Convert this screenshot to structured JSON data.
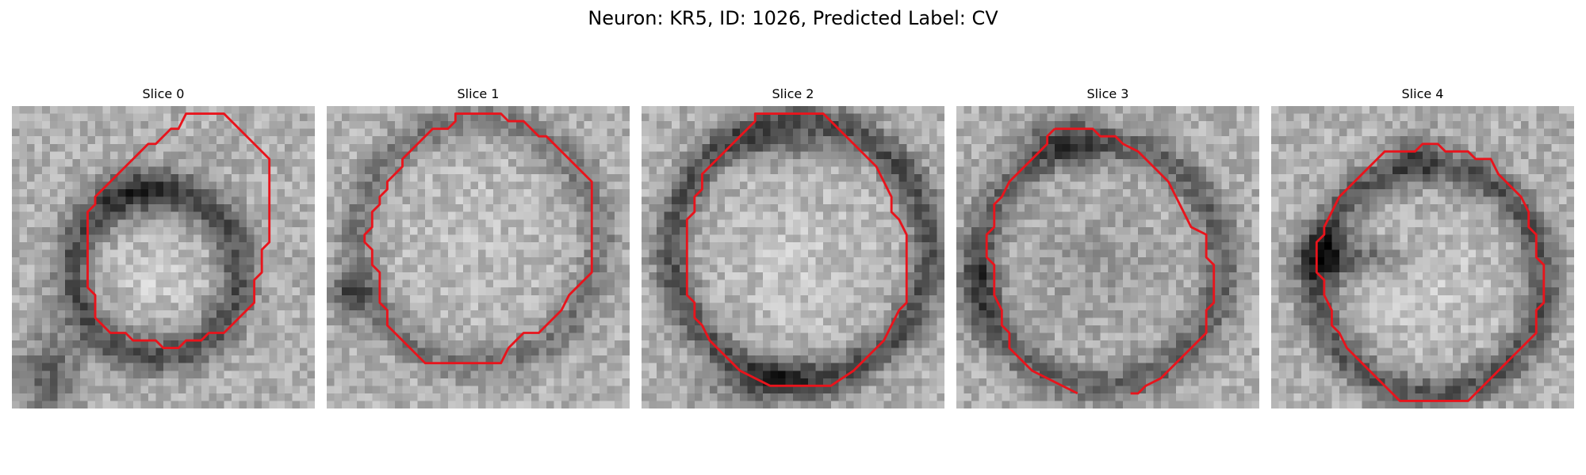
{
  "figure": {
    "title": "Neuron: KR5, ID: 1026, Predicted Label: CV"
  },
  "colors": {
    "contour": "#e8141c",
    "background": "#ffffff"
  },
  "panels": [
    {
      "title": "Slice 0",
      "pattern": "small-ring-left",
      "contour": [
        [
          23,
          1
        ],
        [
          28,
          1
        ],
        [
          34,
          7
        ],
        [
          34,
          18
        ],
        [
          33,
          19
        ],
        [
          33,
          22
        ],
        [
          32,
          23
        ],
        [
          32,
          26
        ],
        [
          31,
          27
        ],
        [
          30,
          28
        ],
        [
          28,
          30
        ],
        [
          26,
          30
        ],
        [
          25,
          31
        ],
        [
          23,
          31
        ],
        [
          22,
          32
        ],
        [
          20,
          32
        ],
        [
          19,
          31
        ],
        [
          16,
          31
        ],
        [
          15,
          30
        ],
        [
          13,
          30
        ],
        [
          12,
          29
        ],
        [
          11,
          28
        ],
        [
          11,
          25
        ],
        [
          10,
          24
        ],
        [
          10,
          14
        ],
        [
          11,
          13
        ],
        [
          11,
          12
        ],
        [
          12,
          11
        ],
        [
          13,
          10
        ],
        [
          14,
          9
        ],
        [
          15,
          8
        ],
        [
          16,
          7
        ],
        [
          17,
          6
        ],
        [
          18,
          5
        ],
        [
          19,
          5
        ],
        [
          21,
          3
        ],
        [
          22,
          3
        ]
      ]
    },
    {
      "title": "Slice 1",
      "pattern": "large-ring",
      "contour": [
        [
          17,
          1
        ],
        [
          23,
          1
        ],
        [
          24,
          2
        ],
        [
          26,
          2
        ],
        [
          28,
          4
        ],
        [
          29,
          4
        ],
        [
          34,
          9
        ],
        [
          35,
          10
        ],
        [
          35,
          22
        ],
        [
          34,
          23
        ],
        [
          33,
          24
        ],
        [
          32,
          25
        ],
        [
          31,
          27
        ],
        [
          30,
          28
        ],
        [
          28,
          30
        ],
        [
          26,
          30
        ],
        [
          25,
          31
        ],
        [
          24,
          32
        ],
        [
          23,
          34
        ],
        [
          13,
          34
        ],
        [
          12,
          33
        ],
        [
          11,
          32
        ],
        [
          10,
          31
        ],
        [
          9,
          30
        ],
        [
          8,
          29
        ],
        [
          8,
          27
        ],
        [
          7,
          26
        ],
        [
          7,
          24
        ],
        [
          7,
          22
        ],
        [
          6,
          21
        ],
        [
          6,
          19
        ],
        [
          5,
          18
        ],
        [
          5,
          17
        ],
        [
          6,
          16
        ],
        [
          6,
          14
        ],
        [
          7,
          13
        ],
        [
          7,
          12
        ],
        [
          8,
          11
        ],
        [
          8,
          10
        ],
        [
          10,
          8
        ],
        [
          10,
          7
        ],
        [
          11,
          6
        ],
        [
          12,
          5
        ],
        [
          13,
          4
        ],
        [
          14,
          3
        ],
        [
          16,
          3
        ],
        [
          17,
          2
        ]
      ]
    },
    {
      "title": "Slice 2",
      "pattern": "ring-dark-bottom",
      "contour": [
        [
          15,
          1
        ],
        [
          24,
          1
        ],
        [
          27,
          4
        ],
        [
          28,
          5
        ],
        [
          31,
          8
        ],
        [
          32,
          10
        ],
        [
          33,
          12
        ],
        [
          33,
          14
        ],
        [
          34,
          15
        ],
        [
          35,
          17
        ],
        [
          35,
          26
        ],
        [
          34,
          27
        ],
        [
          33,
          29
        ],
        [
          32,
          31
        ],
        [
          31,
          32
        ],
        [
          30,
          33
        ],
        [
          29,
          34
        ],
        [
          28,
          35
        ],
        [
          25,
          37
        ],
        [
          17,
          37
        ],
        [
          15,
          36
        ],
        [
          13,
          35
        ],
        [
          12,
          34
        ],
        [
          11,
          33
        ],
        [
          10,
          32
        ],
        [
          9,
          31
        ],
        [
          8,
          29
        ],
        [
          7,
          28
        ],
        [
          7,
          26
        ],
        [
          6,
          25
        ],
        [
          6,
          20
        ],
        [
          6,
          15
        ],
        [
          7,
          14
        ],
        [
          7,
          12
        ],
        [
          8,
          11
        ],
        [
          8,
          9
        ],
        [
          9,
          8
        ],
        [
          10,
          7
        ],
        [
          11,
          6
        ],
        [
          12,
          5
        ],
        [
          13,
          4
        ],
        [
          14,
          3
        ],
        [
          15,
          2
        ]
      ]
    },
    {
      "title": "Slice 3",
      "pattern": "large-ring-dark-top",
      "contour": [
        [
          13,
          3
        ],
        [
          18,
          3
        ],
        [
          19,
          4
        ],
        [
          21,
          4
        ],
        [
          22,
          5
        ],
        [
          24,
          6
        ],
        [
          26,
          8
        ],
        [
          28,
          10
        ],
        [
          29,
          12
        ],
        [
          30,
          14
        ],
        [
          31,
          16
        ],
        [
          33,
          17
        ],
        [
          33,
          20
        ],
        [
          34,
          21
        ],
        [
          34,
          26
        ],
        [
          33,
          27
        ],
        [
          33,
          30
        ],
        [
          32,
          31
        ],
        [
          31,
          32
        ],
        [
          30,
          33
        ],
        [
          29,
          34
        ],
        [
          28,
          35
        ],
        [
          27,
          36
        ],
        [
          25,
          37
        ],
        [
          24,
          38
        ],
        [
          23,
          38
        ]
      ],
      "contour_tail": [
        [
          16,
          38
        ],
        [
          14,
          37
        ],
        [
          12,
          36
        ],
        [
          10,
          35
        ],
        [
          9,
          34
        ],
        [
          8,
          33
        ],
        [
          7,
          32
        ],
        [
          7,
          30
        ],
        [
          6,
          29
        ],
        [
          6,
          27
        ],
        [
          5,
          25
        ],
        [
          5,
          21
        ],
        [
          4,
          20
        ],
        [
          4,
          17
        ],
        [
          5,
          16
        ],
        [
          5,
          13
        ],
        [
          6,
          12
        ],
        [
          7,
          10
        ],
        [
          8,
          9
        ],
        [
          9,
          8
        ],
        [
          10,
          7
        ],
        [
          11,
          6
        ],
        [
          12,
          5
        ],
        [
          12,
          4
        ],
        [
          13,
          3
        ]
      ]
    },
    {
      "title": "Slice 4",
      "pattern": "ring-dark-left",
      "contour": [
        [
          22,
          5
        ],
        [
          23,
          6
        ],
        [
          26,
          6
        ],
        [
          27,
          7
        ],
        [
          29,
          7
        ],
        [
          30,
          9
        ],
        [
          31,
          10
        ],
        [
          32,
          11
        ],
        [
          33,
          12
        ],
        [
          34,
          14
        ],
        [
          34,
          16
        ],
        [
          35,
          17
        ],
        [
          35,
          20
        ],
        [
          36,
          21
        ],
        [
          36,
          26
        ],
        [
          35,
          27
        ],
        [
          35,
          30
        ],
        [
          34,
          31
        ],
        [
          33,
          32
        ],
        [
          32,
          33
        ],
        [
          31,
          34
        ],
        [
          30,
          35
        ],
        [
          29,
          36
        ],
        [
          28,
          37
        ],
        [
          27,
          38
        ],
        [
          26,
          39
        ],
        [
          17,
          39
        ],
        [
          16,
          38
        ],
        [
          15,
          37
        ],
        [
          14,
          36
        ],
        [
          13,
          35
        ],
        [
          12,
          34
        ],
        [
          11,
          33
        ],
        [
          10,
          32
        ],
        [
          9,
          30
        ],
        [
          8,
          29
        ],
        [
          8,
          27
        ],
        [
          7,
          25
        ],
        [
          7,
          23
        ],
        [
          6,
          22
        ],
        [
          6,
          18
        ],
        [
          7,
          17
        ],
        [
          7,
          16
        ],
        [
          8,
          14
        ],
        [
          9,
          12
        ],
        [
          10,
          11
        ],
        [
          11,
          10
        ],
        [
          12,
          9
        ],
        [
          13,
          8
        ],
        [
          14,
          7
        ],
        [
          15,
          6
        ],
        [
          19,
          6
        ],
        [
          20,
          5
        ],
        [
          21,
          5
        ]
      ]
    }
  ]
}
